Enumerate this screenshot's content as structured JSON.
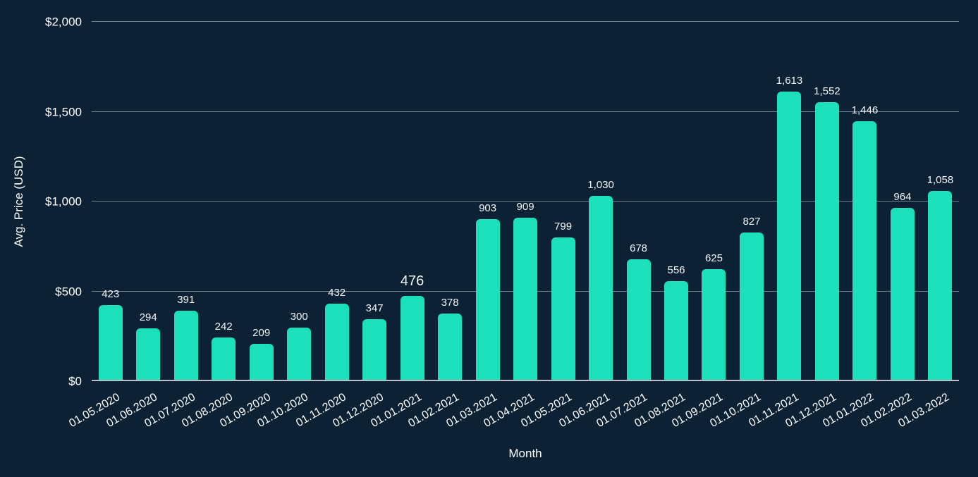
{
  "theme": {
    "background": "#0c2234",
    "bar_color": "#1ce0bb",
    "grid_color": "rgba(214,226,235,0.5)",
    "axis_line_color": "#b9c0ca",
    "text_color": "#ffffff"
  },
  "chart_data": {
    "type": "bar",
    "title": "",
    "xlabel": "Month",
    "ylabel": "Avg. Price (USD)",
    "categories": [
      "01.05.2020",
      "01.06.2020",
      "01.07.2020",
      "01.08.2020",
      "01.09.2020",
      "01.10.2020",
      "01.11.2020",
      "01.12.2020",
      "01.01.2021",
      "01.02.2021",
      "01.03.2021",
      "01.04.2021",
      "01.05.2021",
      "01.06.2021",
      "01.07.2021",
      "01.08.2021",
      "01.09.2021",
      "01.10.2021",
      "01.11.2021",
      "01.12.2021",
      "01.01.2022",
      "01.02.2022",
      "01.03.2022"
    ],
    "values": [
      423,
      294,
      391,
      242,
      209,
      300,
      432,
      347,
      476,
      378,
      903,
      909,
      799,
      1030,
      678,
      556,
      625,
      827,
      1613,
      1552,
      1446,
      964,
      1058
    ],
    "value_labels": [
      "423",
      "294",
      "391",
      "242",
      "209",
      "300",
      "432",
      "347",
      "476",
      "378",
      "903",
      "909",
      "799",
      "1,030",
      "678",
      "556",
      "625",
      "827",
      "1,613",
      "1,552",
      "1,446",
      "964",
      "1,058"
    ],
    "highlight_index": 8,
    "ylim": [
      0,
      2000
    ],
    "y_ticks": [
      {
        "value": 0,
        "label": "$0"
      },
      {
        "value": 500,
        "label": "$500"
      },
      {
        "value": 1000,
        "label": "$1,000"
      },
      {
        "value": 1500,
        "label": "$1,500"
      },
      {
        "value": 2000,
        "label": "$2,000"
      }
    ],
    "grid": true,
    "legend": false
  }
}
